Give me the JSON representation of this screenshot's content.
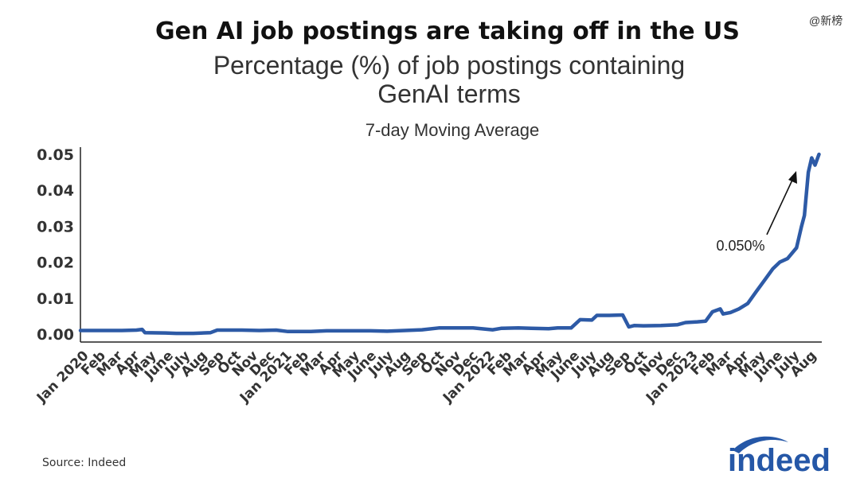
{
  "title": "Gen AI job postings are taking off in the US",
  "subtitle_line1": "Percentage (%) of job postings containing",
  "subtitle_line2": "GenAI terms",
  "moving_average_label": "7-day Moving Average",
  "watermark": "@新榜",
  "source": "Source: Indeed",
  "logo_text": "indeed",
  "colors": {
    "line": "#2d5aa6",
    "axis": "#222222",
    "logo": "#2557a7"
  },
  "chart_data": {
    "type": "line",
    "title": "Gen AI job postings are taking off in the US",
    "xlabel": "",
    "ylabel": "",
    "ylim": [
      0,
      0.05
    ],
    "x_ticks": [
      "Jan 2020",
      "Feb",
      "Mar",
      "Apr",
      "May",
      "June",
      "July",
      "Aug",
      "Sep",
      "Oct",
      "Nov",
      "Dec",
      "Jan 2021",
      "Feb",
      "Mar",
      "Apr",
      "May",
      "June",
      "July",
      "Aug",
      "Sep",
      "Oct",
      "Nov",
      "Dec",
      "Jan 2022",
      "Feb",
      "Mar",
      "Apr",
      "May",
      "June",
      "July",
      "Aug",
      "Sep",
      "Oct",
      "Nov",
      "Dec",
      "Jan 2023",
      "Feb",
      "Mar",
      "Apr",
      "May",
      "June",
      "July",
      "Aug"
    ],
    "y_ticks": [
      "0.00",
      "0.01",
      "0.02",
      "0.03",
      "0.04",
      "0.05"
    ],
    "annotation": "0.050%",
    "series": [
      {
        "points": [
          [
            "2020-01-01",
            0.001
          ],
          [
            "2020-02-15",
            0.001
          ],
          [
            "2020-03-15",
            0.001
          ],
          [
            "2020-04-10",
            0.0011
          ],
          [
            "2020-04-20",
            0.0013
          ],
          [
            "2020-04-25",
            0.0004
          ],
          [
            "2020-06-01",
            0.0003
          ],
          [
            "2020-06-20",
            0.0002
          ],
          [
            "2020-07-20",
            0.0002
          ],
          [
            "2020-08-20",
            0.0004
          ],
          [
            "2020-09-01",
            0.0011
          ],
          [
            "2020-10-15",
            0.0011
          ],
          [
            "2020-11-15",
            0.001
          ],
          [
            "2020-12-15",
            0.0011
          ],
          [
            "2021-01-05",
            0.0007
          ],
          [
            "2021-02-15",
            0.0007
          ],
          [
            "2021-03-15",
            0.0009
          ],
          [
            "2021-04-15",
            0.0009
          ],
          [
            "2021-06-01",
            0.0009
          ],
          [
            "2021-07-01",
            0.0008
          ],
          [
            "2021-08-01",
            0.001
          ],
          [
            "2021-09-01",
            0.0012
          ],
          [
            "2021-10-01",
            0.0017
          ],
          [
            "2021-11-01",
            0.0017
          ],
          [
            "2021-12-01",
            0.0017
          ],
          [
            "2022-01-05",
            0.0012
          ],
          [
            "2022-01-20",
            0.0016
          ],
          [
            "2022-02-20",
            0.0017
          ],
          [
            "2022-03-15",
            0.0016
          ],
          [
            "2022-04-15",
            0.0015
          ],
          [
            "2022-05-01",
            0.0017
          ],
          [
            "2022-05-25",
            0.0017
          ],
          [
            "2022-06-10",
            0.004
          ],
          [
            "2022-07-01",
            0.0039
          ],
          [
            "2022-07-10",
            0.0052
          ],
          [
            "2022-08-01",
            0.0052
          ],
          [
            "2022-08-25",
            0.0053
          ],
          [
            "2022-09-05",
            0.002
          ],
          [
            "2022-09-15",
            0.0024
          ],
          [
            "2022-10-01",
            0.0023
          ],
          [
            "2022-11-01",
            0.0024
          ],
          [
            "2022-12-01",
            0.0026
          ],
          [
            "2022-12-15",
            0.0032
          ],
          [
            "2023-01-05",
            0.0034
          ],
          [
            "2023-01-20",
            0.0036
          ],
          [
            "2023-02-01",
            0.0062
          ],
          [
            "2023-02-15",
            0.007
          ],
          [
            "2023-02-20",
            0.0056
          ],
          [
            "2023-03-05",
            0.006
          ],
          [
            "2023-03-20",
            0.007
          ],
          [
            "2023-04-05",
            0.0085
          ],
          [
            "2023-04-20",
            0.0118
          ],
          [
            "2023-05-05",
            0.015
          ],
          [
            "2023-05-20",
            0.0182
          ],
          [
            "2023-06-01",
            0.02
          ],
          [
            "2023-06-15",
            0.021
          ],
          [
            "2023-07-01",
            0.024
          ],
          [
            "2023-07-10",
            0.03
          ],
          [
            "2023-07-15",
            0.033
          ],
          [
            "2023-07-22",
            0.045
          ],
          [
            "2023-07-28",
            0.049
          ],
          [
            "2023-08-03",
            0.047
          ],
          [
            "2023-08-10",
            0.05
          ]
        ]
      }
    ]
  }
}
